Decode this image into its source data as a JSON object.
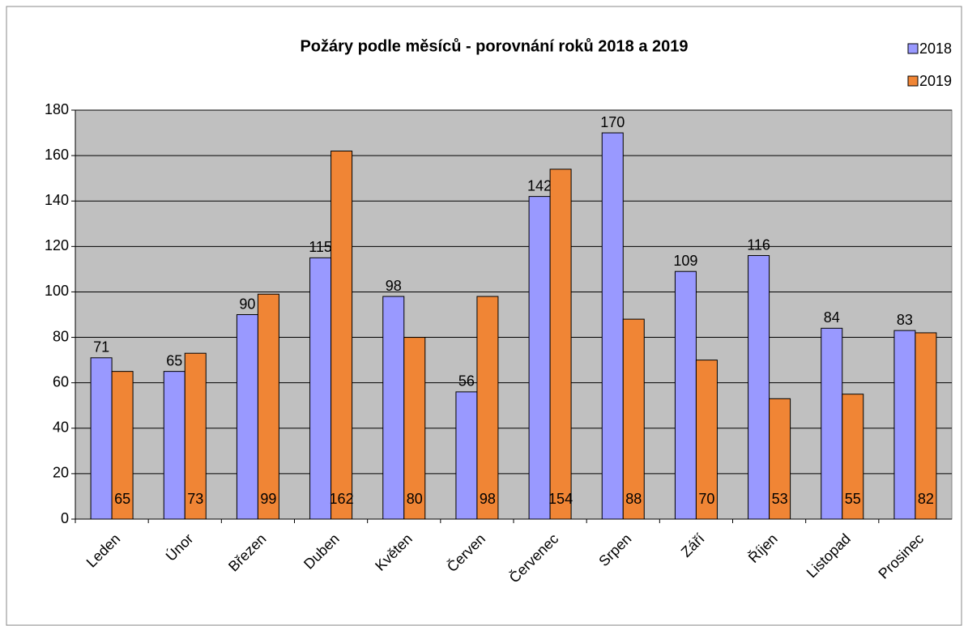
{
  "chart_data": {
    "type": "bar",
    "title": "Požáry podle měsíců - porovnání roků 2018 a 2019",
    "categories": [
      "Leden",
      "Únor",
      "Březen",
      "Duben",
      "Květen",
      "Červen",
      "Červenec",
      "Srpen",
      "Září",
      "Říjen",
      "Listopad",
      "Prosinec"
    ],
    "series": [
      {
        "name": "2018",
        "color": "#9999ff",
        "values": [
          71,
          65,
          90,
          115,
          98,
          56,
          142,
          170,
          109,
          116,
          84,
          83
        ]
      },
      {
        "name": "2019",
        "color": "#f08535",
        "values": [
          65,
          73,
          99,
          162,
          80,
          98,
          154,
          88,
          70,
          53,
          55,
          82
        ]
      }
    ],
    "ylim": [
      0,
      180
    ],
    "yticks": [
      0,
      20,
      40,
      60,
      80,
      100,
      120,
      140,
      160,
      180
    ],
    "grid": true,
    "legend": "top-right"
  }
}
